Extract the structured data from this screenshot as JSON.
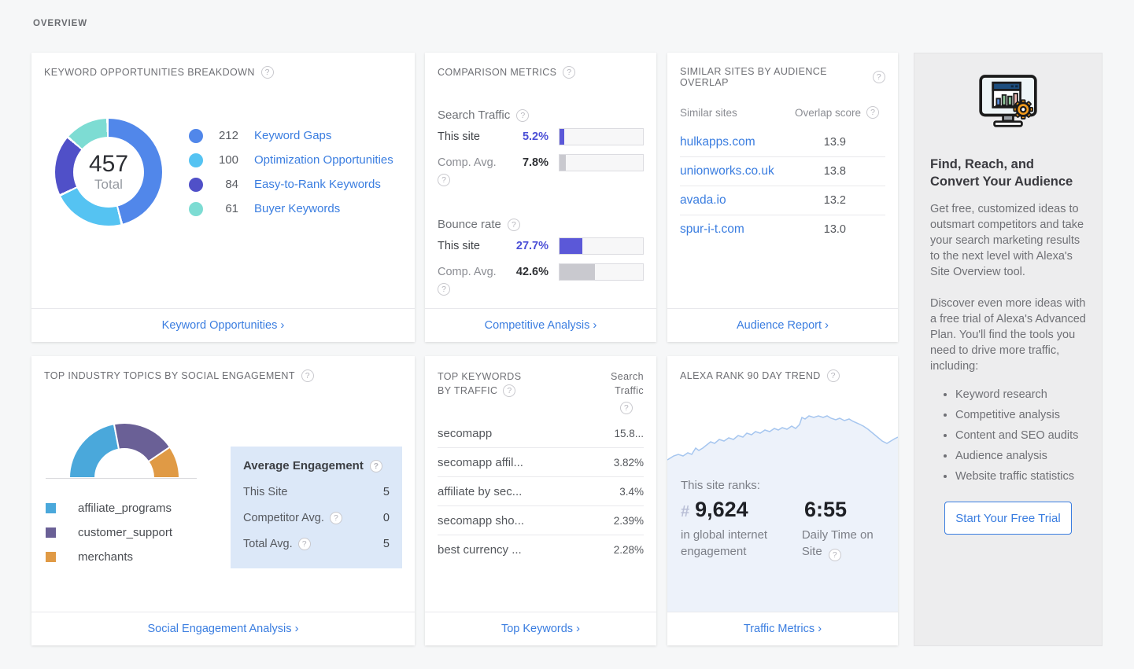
{
  "section_label": "OVERVIEW",
  "colors": {
    "link": "#3a7de0",
    "bar_site": "#5b58d8",
    "bar_avg": "#c9c9cf",
    "trend_line": "#a6c6ef",
    "trend_fill": "#edf2fa",
    "avg_box_bg": "#dce8f8"
  },
  "cards": {
    "keyword_opportunities": {
      "title": "KEYWORD OPPORTUNITIES BREAKDOWN",
      "total": "457",
      "total_label": "Total",
      "segments": [
        {
          "count": 212,
          "label": "Keyword Gaps",
          "color": "#5187ea"
        },
        {
          "count": 100,
          "label": "Optimization Opportunities",
          "color": "#55c3f2"
        },
        {
          "count": 84,
          "label": "Easy-to-Rank Keywords",
          "color": "#5050c8"
        },
        {
          "count": 61,
          "label": "Buyer Keywords",
          "color": "#7ddcd3"
        }
      ],
      "footer_link": "Keyword Opportunities"
    },
    "comparison_metrics": {
      "title": "COMPARISON METRICS",
      "groups": [
        {
          "label": "Search Traffic",
          "rows": [
            {
              "label": "This site",
              "value": "5.2%",
              "pct": 5.2
            },
            {
              "label": "Comp. Avg.",
              "value": "7.8%",
              "pct": 7.8
            }
          ]
        },
        {
          "label": "Bounce rate",
          "rows": [
            {
              "label": "This site",
              "value": "27.7%",
              "pct": 27.7
            },
            {
              "label": "Comp. Avg.",
              "value": "42.6%",
              "pct": 42.6
            }
          ]
        }
      ],
      "footer_link": "Competitive Analysis"
    },
    "similar_sites": {
      "title": "SIMILAR SITES BY AUDIENCE OVERLAP",
      "col_site": "Similar sites",
      "col_score": "Overlap score",
      "rows": [
        {
          "site": "hulkapps.com",
          "score": "13.9"
        },
        {
          "site": "unionworks.co.uk",
          "score": "13.8"
        },
        {
          "site": "avada.io",
          "score": "13.2"
        },
        {
          "site": "spur-i-t.com",
          "score": "13.0"
        }
      ],
      "footer_link": "Audience Report"
    },
    "social_engagement": {
      "title": "TOP INDUSTRY TOPICS BY SOCIAL ENGAGEMENT",
      "segments": [
        {
          "label": "affiliate_programs",
          "color": "#4aa8db",
          "fraction": 0.44
        },
        {
          "label": "customer_support",
          "color": "#6a6096",
          "fraction": 0.37
        },
        {
          "label": "merchants",
          "color": "#e09a45",
          "fraction": 0.19
        }
      ],
      "avg_box": {
        "title": "Average Engagement",
        "rows": [
          {
            "label": "This Site",
            "value": "5"
          },
          {
            "label": "Competitor Avg.",
            "value": "0"
          },
          {
            "label": "Total Avg.",
            "value": "5"
          }
        ]
      },
      "footer_link": "Social Engagement Analysis"
    },
    "top_keywords": {
      "title_line1": "TOP KEYWORDS",
      "title_line2": "BY TRAFFIC",
      "col_right_line1": "Search",
      "col_right_line2": "Traffic",
      "rows": [
        {
          "keyword": "secomapp",
          "value": "15.8..."
        },
        {
          "keyword": "secomapp affil...",
          "value": "3.82%"
        },
        {
          "keyword": "affiliate by sec...",
          "value": "3.4%"
        },
        {
          "keyword": "secomapp sho...",
          "value": "2.39%"
        },
        {
          "keyword": "best currency ...",
          "value": "2.28%"
        }
      ],
      "footer_link": "Top Keywords"
    },
    "alexa_rank": {
      "title": "ALEXA RANK 90 DAY TREND",
      "ranks_label": "This site ranks:",
      "rank_hash": "#",
      "rank": "9,624",
      "rank_caption": "in global internet engagement",
      "time": "6:55",
      "time_caption": "Daily Time on Site",
      "trend_points": [
        [
          0,
          85
        ],
        [
          8,
          80
        ],
        [
          14,
          78
        ],
        [
          20,
          80
        ],
        [
          26,
          76
        ],
        [
          31,
          78
        ],
        [
          36,
          70
        ],
        [
          40,
          73
        ],
        [
          45,
          70
        ],
        [
          50,
          66
        ],
        [
          55,
          62
        ],
        [
          60,
          64
        ],
        [
          66,
          59
        ],
        [
          72,
          61
        ],
        [
          78,
          57
        ],
        [
          84,
          59
        ],
        [
          90,
          54
        ],
        [
          96,
          56
        ],
        [
          101,
          51
        ],
        [
          107,
          53
        ],
        [
          112,
          49
        ],
        [
          118,
          51
        ],
        [
          124,
          47
        ],
        [
          130,
          49
        ],
        [
          136,
          45
        ],
        [
          141,
          47
        ],
        [
          146,
          44
        ],
        [
          152,
          46
        ],
        [
          158,
          42
        ],
        [
          163,
          45
        ],
        [
          168,
          40
        ],
        [
          171,
          31
        ],
        [
          175,
          33
        ],
        [
          180,
          29
        ],
        [
          186,
          31
        ],
        [
          192,
          29
        ],
        [
          198,
          31
        ],
        [
          203,
          29
        ],
        [
          208,
          32
        ],
        [
          214,
          34
        ],
        [
          219,
          32
        ],
        [
          225,
          35
        ],
        [
          231,
          33
        ],
        [
          236,
          36
        ],
        [
          243,
          39
        ],
        [
          249,
          42
        ],
        [
          255,
          46
        ],
        [
          261,
          51
        ],
        [
          267,
          56
        ],
        [
          273,
          61
        ],
        [
          279,
          64
        ],
        [
          284,
          61
        ],
        [
          289,
          58
        ],
        [
          293,
          56
        ]
      ],
      "footer_link": "Traffic Metrics"
    }
  },
  "promo": {
    "title": "Find, Reach, and Convert Your Audience",
    "paragraph1": "Get free, customized ideas to outsmart competitors and take your search marketing results to the next level with Alexa's Site Overview tool.",
    "paragraph2": "Discover even more ideas with a free trial of Alexa's Advanced Plan. You'll find the tools you need to drive more traffic, including:",
    "bullets": [
      "Keyword research",
      "Competitive analysis",
      "Content and SEO audits",
      "Audience analysis",
      "Website traffic statistics"
    ],
    "button": "Start Your Free Trial"
  }
}
